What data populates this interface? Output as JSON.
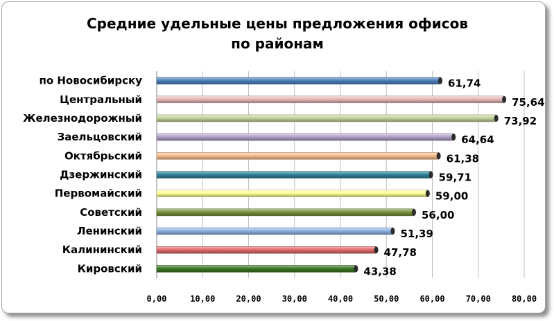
{
  "chart_data": {
    "type": "bar",
    "orientation": "horizontal",
    "title": "Средние удельные цены предложения офисов по районам",
    "categories": [
      "по Новосибирску",
      "Центральный",
      "Железнодорожный",
      "Заельцовский",
      "Октябрьский",
      "Дзержинский",
      "Первомайский",
      "Советский",
      "Ленинский",
      "Калининский",
      "Кировский"
    ],
    "values": [
      61.74,
      75.64,
      73.92,
      64.64,
      61.38,
      59.71,
      59.0,
      56.0,
      51.39,
      47.78,
      43.38
    ],
    "value_labels": [
      "61,74",
      "75,64",
      "73,92",
      "64,64",
      "61,38",
      "59,71",
      "59,00",
      "56,00",
      "51,39",
      "47,78",
      "43,38"
    ],
    "bar_colors": [
      "#4f81bd",
      "#e6b9b8",
      "#c3d69b",
      "#b3a2c7",
      "#fac090",
      "#31859c",
      "#ffff99",
      "#77933c",
      "#8eb4e3",
      "#e46c6c",
      "#3a7a25"
    ],
    "xlim": [
      0,
      80
    ],
    "x_ticks": [
      0,
      10,
      20,
      30,
      40,
      50,
      60,
      70,
      80
    ],
    "x_tick_labels": [
      "0,00",
      "10,00",
      "20,00",
      "30,00",
      "40,00",
      "50,00",
      "60,00",
      "70,00",
      "80,00"
    ],
    "xlabel": "",
    "ylabel": "",
    "grid": true,
    "legend": "none"
  }
}
